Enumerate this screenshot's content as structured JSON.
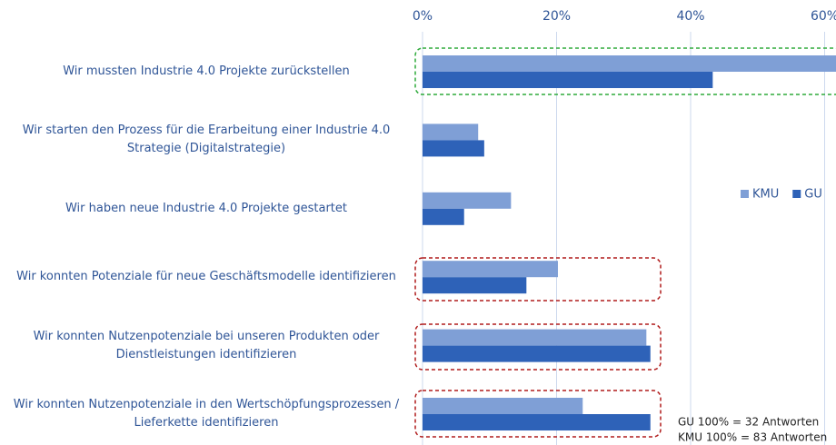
{
  "chart_data": {
    "type": "bar",
    "orientation": "horizontal",
    "categories": [
      "Wir mussten Industrie 4.0 Projekte zurückstellen",
      "Wir starten den Prozess für die Erarbeitung einer Industrie 4.0 Strategie (Digitalstrategie)",
      "Wir haben neue Industrie 4.0 Projekte gestartet",
      "Wir konnten Potenziale für neue Geschäftsmodelle identifizieren",
      "Wir konnten Nutzenpotenziale bei unseren Produkten oder Dienstleistungen identifizieren",
      "Wir konnten Nutzenpotenziale in den Wertschöpfungsprozessen / Lieferkette identifizieren"
    ],
    "series": [
      {
        "name": "KMU",
        "color": "#7f9fd6",
        "values": [
          62,
          8.3,
          13.2,
          20.2,
          33.4,
          23.9
        ]
      },
      {
        "name": "GU",
        "color": "#2e62b8",
        "values": [
          43.3,
          9.2,
          6.2,
          15.5,
          34,
          34
        ]
      }
    ],
    "xlim": [
      0,
      61.8
    ],
    "xticks": [
      {
        "value": 0,
        "label": "0%"
      },
      {
        "value": 20,
        "label": "20%"
      },
      {
        "value": 40,
        "label": "40%"
      },
      {
        "value": 60,
        "label": "60%"
      }
    ],
    "grid": true,
    "legend": "right",
    "annotations": [
      "GU 100% = 32 Antworten",
      "KMU 100% = 83 Antworten"
    ]
  }
}
